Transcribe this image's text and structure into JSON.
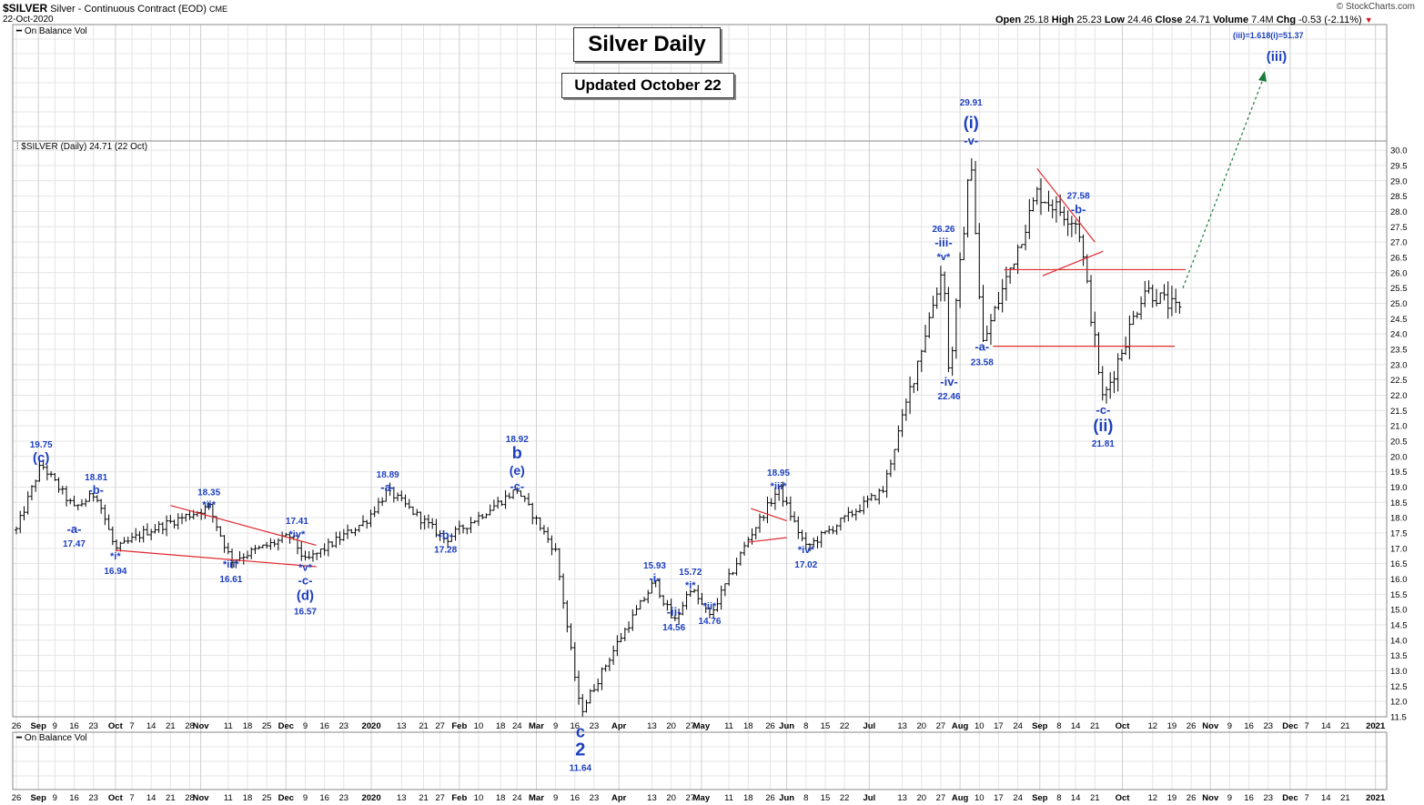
{
  "header": {
    "symbol": "$SILVER",
    "name": "Silver - Continuous Contract (EOD)",
    "exchange": "CME",
    "date": "22-Oct-2020",
    "copyright": "© StockCharts.com",
    "ohlc": {
      "open_label": "Open",
      "open": "25.18",
      "high_label": "High",
      "high": "25.23",
      "low_label": "Low",
      "low": "24.46",
      "close_label": "Close",
      "close": "24.71",
      "volume_label": "Volume",
      "volume": "7.4M",
      "chg_label": "Chg",
      "chg": "-0.53 (-2.11%)"
    }
  },
  "top_panel_legend": "On Balance Vol",
  "bottom_panel_legend": "On Balance Vol",
  "price_legend": "$SILVER (Daily) 24.71 (22 Oct)",
  "title_box": "Silver Daily",
  "updated_box": "Updated October 22",
  "target_note": "(iii)=1.618(i)=51.37",
  "colors": {
    "bars": "#000000",
    "wave_labels": "#1d3fbf",
    "trendlines": "#e0282e",
    "projection": "#1a7a3a",
    "grid": "#e4e4e4"
  },
  "chart_data": {
    "type": "ohlc-bar",
    "title": "Silver Daily",
    "series_name": "$SILVER (Daily)",
    "ylim": [
      11.5,
      30.3
    ],
    "yticks": [
      11.5,
      12.0,
      12.5,
      13.0,
      13.5,
      14.0,
      14.5,
      15.0,
      15.5,
      16.0,
      16.5,
      17.0,
      17.5,
      18.0,
      18.5,
      19.0,
      19.5,
      20.0,
      20.5,
      21.0,
      21.5,
      22.0,
      22.5,
      23.0,
      23.5,
      24.0,
      24.5,
      25.0,
      25.5,
      26.0,
      26.5,
      27.0,
      27.5,
      28.0,
      28.5,
      29.0,
      29.5,
      30.0
    ],
    "ytick_labels": [
      "11.5",
      "12.0",
      "12.5",
      "13.0",
      "13.5",
      "14.0",
      "14.5",
      "15.0",
      "15.5",
      "16.0",
      "16.5",
      "17.0",
      "17.5",
      "18.0",
      "18.5",
      "19.0",
      "19.5",
      "20.0",
      "20.5",
      "21.0",
      "21.5",
      "22.0",
      "22.5",
      "23.0",
      "23.5",
      "24.0",
      "24.5",
      "25.0",
      "25.5",
      "26.0",
      "26.5",
      "27.0",
      "27.5",
      "28.0",
      "28.5",
      "29.0",
      "29.5",
      "30.0"
    ],
    "x_tick_labels": [
      "26",
      "Sep",
      "9",
      "16",
      "23",
      "Oct",
      "7",
      "14",
      "21",
      "28",
      "Nov",
      "11",
      "18",
      "25",
      "Dec",
      "9",
      "16",
      "23",
      "2020",
      "13",
      "21",
      "27",
      "Feb",
      "10",
      "18",
      "24",
      "Mar",
      "9",
      "16",
      "23",
      "Apr",
      "13",
      "20",
      "27",
      "May",
      "11",
      "18",
      "26",
      "Jun",
      "8",
      "15",
      "22",
      "Jul",
      "13",
      "20",
      "27",
      "Aug",
      "10",
      "17",
      "24",
      "Sep",
      "8",
      "14",
      "21",
      "Oct",
      "12",
      "19",
      "26",
      "Nov",
      "9",
      "16",
      "23",
      "Dec",
      "7",
      "14",
      "21",
      "2021"
    ],
    "bold_x_ticks": [
      "Sep",
      "Oct",
      "Nov",
      "Dec",
      "2020",
      "Feb",
      "Mar",
      "Apr",
      "May",
      "Jun",
      "Jul",
      "Aug",
      "Sep",
      "Oct",
      "Nov",
      "Dec",
      "2021"
    ],
    "closes_approx": [
      [
        "2019-08-26",
        17.6
      ],
      [
        "2019-09-04",
        19.75
      ],
      [
        "2019-09-16",
        18.3
      ],
      [
        "2019-09-24",
        18.81
      ],
      [
        "2019-10-01",
        16.94
      ],
      [
        "2019-10-11",
        17.5
      ],
      [
        "2019-11-04",
        18.35
      ],
      [
        "2019-11-12",
        16.61
      ],
      [
        "2019-12-04",
        17.41
      ],
      [
        "2019-12-09",
        16.57
      ],
      [
        "2019-12-31",
        17.9
      ],
      [
        "2020-01-08",
        18.89
      ],
      [
        "2020-01-29",
        17.28
      ],
      [
        "2020-02-24",
        18.92
      ],
      [
        "2020-03-09",
        16.9
      ],
      [
        "2020-03-18",
        11.64
      ],
      [
        "2020-04-01",
        14.0
      ],
      [
        "2020-04-14",
        15.93
      ],
      [
        "2020-04-21",
        14.56
      ],
      [
        "2020-04-27",
        15.72
      ],
      [
        "2020-05-04",
        14.76
      ],
      [
        "2020-05-18",
        17.3
      ],
      [
        "2020-05-29",
        18.95
      ],
      [
        "2020-06-08",
        17.02
      ],
      [
        "2020-07-06",
        18.9
      ],
      [
        "2020-07-28",
        26.26
      ],
      [
        "2020-07-30",
        22.46
      ],
      [
        "2020-08-07",
        29.91
      ],
      [
        "2020-08-11",
        23.58
      ],
      [
        "2020-08-31",
        28.6
      ],
      [
        "2020-09-15",
        27.58
      ],
      [
        "2020-09-24",
        21.81
      ],
      [
        "2020-10-09",
        25.5
      ],
      [
        "2020-10-22",
        24.71
      ]
    ],
    "wave_labels": [
      {
        "text": "19.75"
      },
      {
        "text": "(c)"
      },
      {
        "text": "18.81"
      },
      {
        "text": "-b-"
      },
      {
        "text": "-a-"
      },
      {
        "text": "17.47"
      },
      {
        "text": "*i*"
      },
      {
        "text": "16.94"
      },
      {
        "text": "18.35"
      },
      {
        "text": "*ii*"
      },
      {
        "text": "*iii*"
      },
      {
        "text": "16.61"
      },
      {
        "text": "17.41"
      },
      {
        "text": "*iv*"
      },
      {
        "text": "*v*"
      },
      {
        "text": "-c-"
      },
      {
        "text": "(d)"
      },
      {
        "text": "16.57"
      },
      {
        "text": "18.89"
      },
      {
        "text": "-a-"
      },
      {
        "text": "-b-"
      },
      {
        "text": "17.28"
      },
      {
        "text": "18.92"
      },
      {
        "text": "b"
      },
      {
        "text": "(e)"
      },
      {
        "text": "-c-"
      },
      {
        "text": "c"
      },
      {
        "text": "2"
      },
      {
        "text": "11.64"
      },
      {
        "text": "15.93"
      },
      {
        "text": "-i-"
      },
      {
        "text": "-ii-"
      },
      {
        "text": "14.56"
      },
      {
        "text": "15.72"
      },
      {
        "text": "*i*"
      },
      {
        "text": "*ii*"
      },
      {
        "text": "14.76"
      },
      {
        "text": "18.95"
      },
      {
        "text": "*iii*"
      },
      {
        "text": "*iv*"
      },
      {
        "text": "17.02"
      },
      {
        "text": "26.26"
      },
      {
        "text": "-iii-"
      },
      {
        "text": "*v*"
      },
      {
        "text": "-iv-"
      },
      {
        "text": "22.46"
      },
      {
        "text": "29.91"
      },
      {
        "text": "(i)"
      },
      {
        "text": "-v-"
      },
      {
        "text": "-a-"
      },
      {
        "text": "23.58"
      },
      {
        "text": "27.58"
      },
      {
        "text": "-b-"
      },
      {
        "text": "-c-"
      },
      {
        "text": "(ii)"
      },
      {
        "text": "21.81"
      },
      {
        "text": "(iii)"
      }
    ]
  }
}
